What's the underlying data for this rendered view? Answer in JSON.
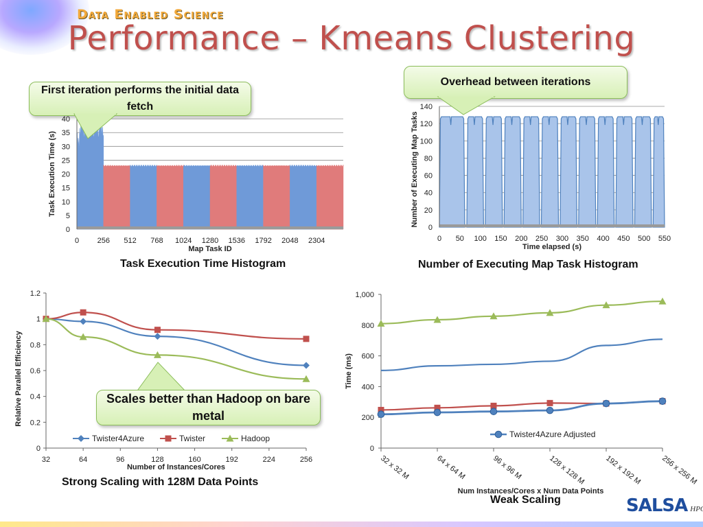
{
  "header": {
    "brand": "Data Enabled Science",
    "title": "Performance – Kmeans Clustering"
  },
  "callouts": {
    "first_iteration": "First iteration performs the initial data fetch",
    "overhead": "Overhead between iterations",
    "scales_better": "Scales better than Hadoop on bare metal"
  },
  "captions": {
    "task_histogram": "Task Execution Time Histogram",
    "executing_histogram": "Number of Executing Map Task Histogram",
    "strong_scaling": "Strong Scaling with 128M Data Points",
    "weak_scaling": "Weak Scaling"
  },
  "logo": {
    "text": "SALSA",
    "suffix": "HPC"
  },
  "colors": {
    "title": "#c0504d",
    "blue": "#4f81bd",
    "red": "#c0504d",
    "green": "#9bbb59",
    "bar_blue": "#6f9ad8",
    "bar_red": "#e07b7b",
    "area_blue": "#a9c4ea"
  },
  "chart_data": [
    {
      "id": "task_histogram",
      "type": "bar",
      "xlabel": "Map Task ID",
      "ylabel": "Task Execution Time (s)",
      "xticks": [
        0,
        256,
        512,
        768,
        1024,
        1280,
        1536,
        1792,
        2048,
        2304
      ],
      "yticks": [
        0,
        5,
        10,
        15,
        20,
        25,
        30,
        35,
        40
      ],
      "xlim": [
        0,
        2560
      ],
      "ylim": [
        0,
        45
      ],
      "segments": [
        {
          "x_start": 0,
          "x_end": 256,
          "value": 36,
          "color": "blue"
        },
        {
          "x_start": 256,
          "x_end": 512,
          "value": 23,
          "color": "red"
        },
        {
          "x_start": 512,
          "x_end": 768,
          "value": 23,
          "color": "blue"
        },
        {
          "x_start": 768,
          "x_end": 1024,
          "value": 23,
          "color": "red"
        },
        {
          "x_start": 1024,
          "x_end": 1280,
          "value": 23,
          "color": "blue"
        },
        {
          "x_start": 1280,
          "x_end": 1536,
          "value": 23,
          "color": "red"
        },
        {
          "x_start": 1536,
          "x_end": 1792,
          "value": 23,
          "color": "blue"
        },
        {
          "x_start": 1792,
          "x_end": 2048,
          "value": 23,
          "color": "red"
        },
        {
          "x_start": 2048,
          "x_end": 2304,
          "value": 23,
          "color": "blue"
        },
        {
          "x_start": 2304,
          "x_end": 2560,
          "value": 23,
          "color": "red"
        }
      ]
    },
    {
      "id": "executing_histogram",
      "type": "area",
      "xlabel": "Time elapsed (s)",
      "ylabel": "Number of Executing Map Tasks",
      "xticks": [
        0,
        50,
        100,
        150,
        200,
        250,
        300,
        350,
        400,
        450,
        500,
        550
      ],
      "yticks": [
        0,
        20,
        40,
        60,
        80,
        100,
        120,
        140
      ],
      "xlim": [
        0,
        550
      ],
      "ylim": [
        0,
        140
      ],
      "plateau": 128,
      "iterations": [
        {
          "start": 0,
          "end": 62
        },
        {
          "start": 67,
          "end": 108
        },
        {
          "start": 112,
          "end": 154
        },
        {
          "start": 158,
          "end": 200
        },
        {
          "start": 204,
          "end": 245
        },
        {
          "start": 249,
          "end": 291
        },
        {
          "start": 295,
          "end": 336
        },
        {
          "start": 340,
          "end": 382
        },
        {
          "start": 386,
          "end": 427
        },
        {
          "start": 431,
          "end": 473
        },
        {
          "start": 477,
          "end": 518
        },
        {
          "start": 522,
          "end": 562
        }
      ]
    },
    {
      "id": "strong_scaling",
      "type": "line",
      "xlabel": "Number of Instances/Cores",
      "ylabel": "Relative Parallel Efficiency",
      "xticks": [
        32,
        64,
        96,
        128,
        160,
        192,
        224,
        256
      ],
      "yticks": [
        0,
        0.2,
        0.4,
        0.6,
        0.8,
        1,
        1.2
      ],
      "xlim": [
        32,
        256
      ],
      "ylim": [
        0,
        1.2
      ],
      "series": [
        {
          "name": "Twister4Azure",
          "color": "blue",
          "marker": "diamond",
          "x": [
            32,
            64,
            128,
            256
          ],
          "values": [
            1.0,
            0.98,
            0.865,
            0.64
          ]
        },
        {
          "name": "Twister",
          "color": "red",
          "marker": "square",
          "x": [
            32,
            64,
            128,
            256
          ],
          "values": [
            1.0,
            1.05,
            0.915,
            0.845
          ]
        },
        {
          "name": "Hadoop",
          "color": "green",
          "marker": "triangle",
          "x": [
            32,
            64,
            128,
            256
          ],
          "values": [
            1.0,
            0.86,
            0.72,
            0.535
          ]
        }
      ]
    },
    {
      "id": "weak_scaling",
      "type": "line",
      "xlabel": "Num  Instances/Cores x Num Data Points",
      "ylabel": "Time (ms)",
      "categories": [
        "32 x 32 M",
        "64 x 64 M",
        "96 x 96 M",
        "128 x 128 M",
        "192 x 192 M",
        "256 x 256 M"
      ],
      "yticks": [
        0,
        200,
        400,
        600,
        800,
        1000
      ],
      "ytick_labels": [
        "0",
        "200",
        "400",
        "600",
        "800",
        "1,000"
      ],
      "ylim": [
        0,
        1000
      ],
      "series": [
        {
          "name": "",
          "color": "green",
          "marker": "triangle",
          "values": [
            810,
            835,
            858,
            880,
            930,
            955
          ]
        },
        {
          "name": "",
          "color": "blue",
          "marker": "none",
          "values": [
            505,
            535,
            545,
            565,
            668,
            708
          ]
        },
        {
          "name": "",
          "color": "red",
          "marker": "square",
          "values": [
            248,
            262,
            275,
            293,
            290,
            305
          ]
        },
        {
          "name": "Twister4Azure Adjusted",
          "color": "blue",
          "marker": "circle",
          "values": [
            220,
            232,
            238,
            245,
            290,
            305
          ]
        }
      ]
    }
  ]
}
